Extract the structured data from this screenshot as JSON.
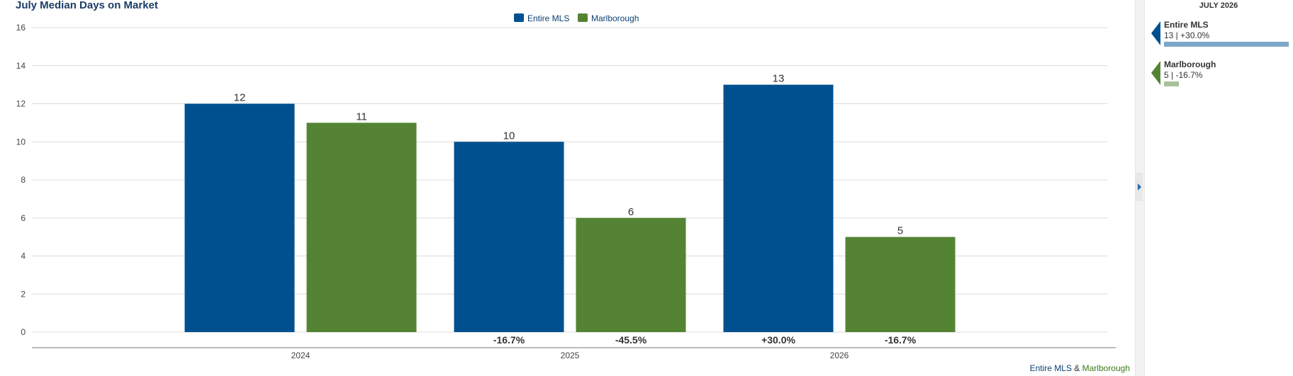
{
  "chart_data": {
    "type": "bar",
    "title": "July Median Days on Market",
    "categories": [
      "2024",
      "2025",
      "2026"
    ],
    "series": [
      {
        "name": "Entire MLS",
        "color": "#00508f",
        "values": [
          12,
          10,
          13
        ],
        "change_labels": [
          "",
          "-16.7%",
          "+30.0%"
        ]
      },
      {
        "name": "Marlborough",
        "color": "#548433",
        "values": [
          11,
          6,
          5
        ],
        "change_labels": [
          "",
          "-45.5%",
          "-16.7%"
        ]
      }
    ],
    "ylim": [
      0,
      16
    ],
    "yticks": [
      0,
      2,
      4,
      6,
      8,
      10,
      12,
      14,
      16
    ],
    "grid": true,
    "legend_position": "top-center",
    "xlabel": "",
    "ylabel": ""
  },
  "footer": {
    "part1": "Entire MLS",
    "sep": " & ",
    "part2": "Marlborough"
  },
  "side_panel": {
    "title": "JULY 2026",
    "entries": [
      {
        "name": "Entire MLS",
        "info": "13 | +30.0%",
        "color": "#00508f",
        "bar_color": "#7fa7c7",
        "bar_fraction": 1.0
      },
      {
        "name": "Marlborough",
        "info": "5 | -16.7%",
        "color": "#548433",
        "bar_color": "#a9c299",
        "bar_fraction": 0.12
      }
    ]
  }
}
